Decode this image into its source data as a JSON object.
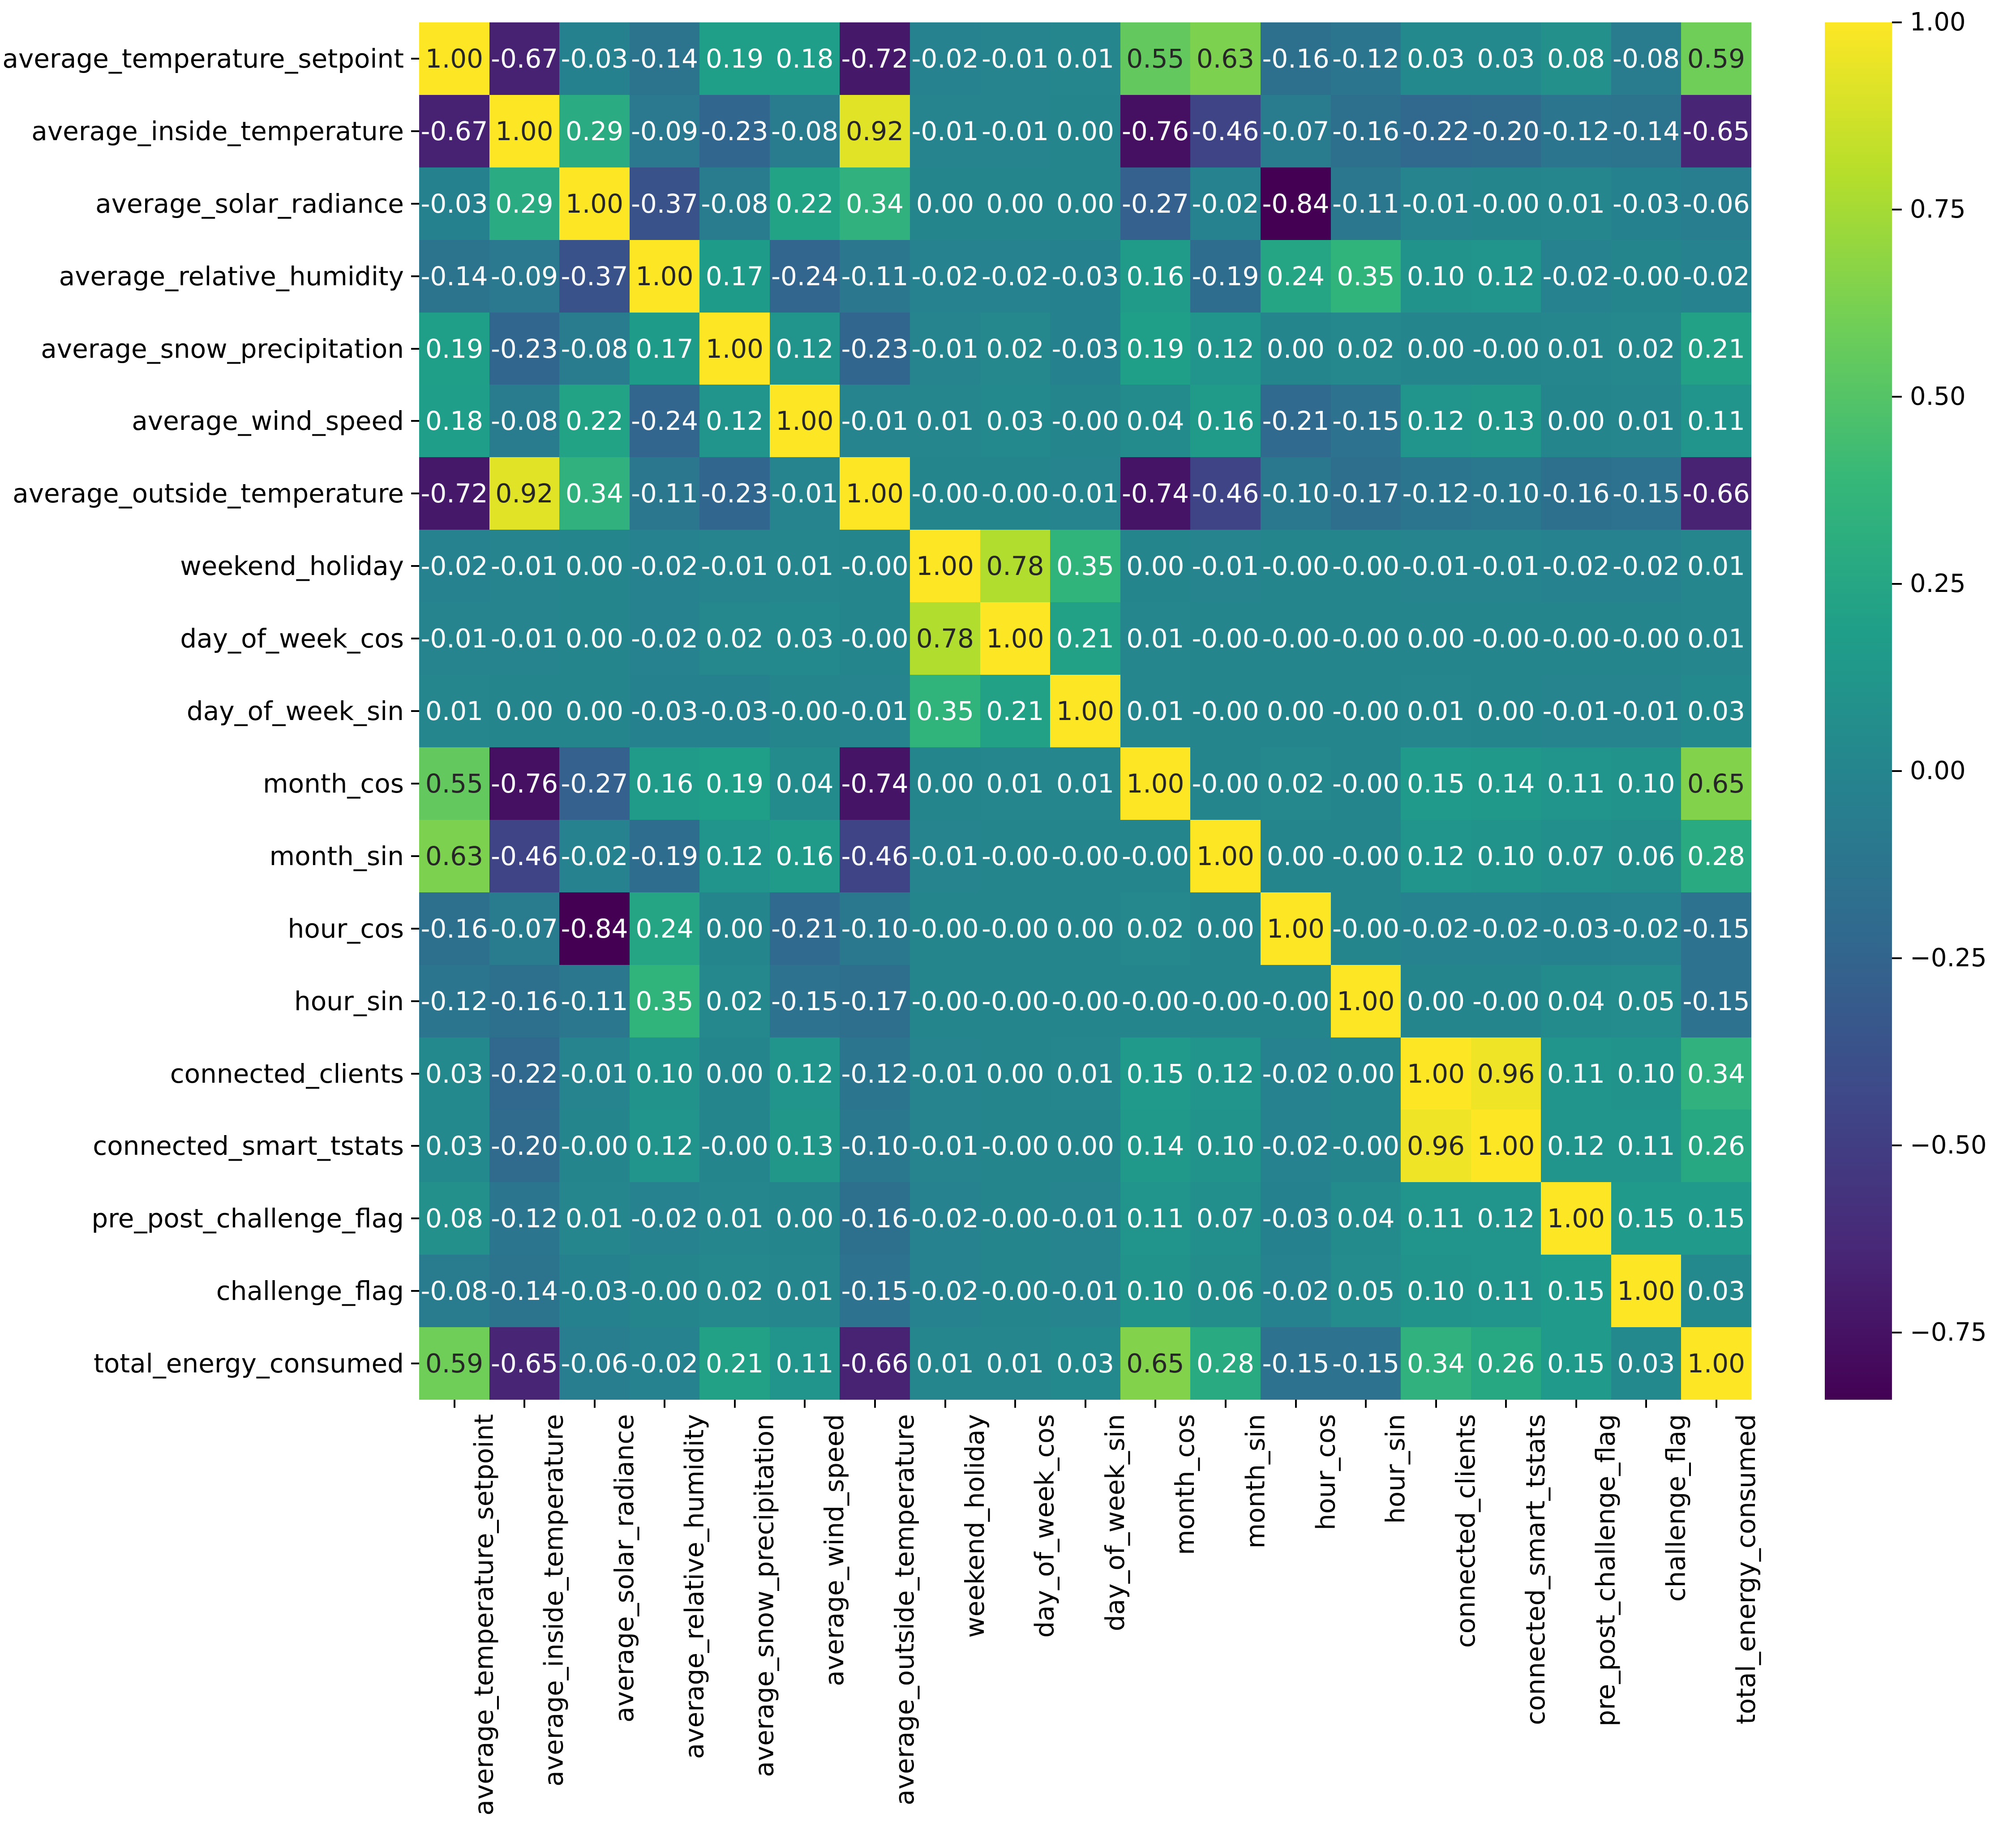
{
  "chart_data": {
    "type": "heatmap",
    "title": "",
    "colormap": "viridis",
    "vmin": -0.84,
    "vmax": 1.0,
    "grid": false,
    "legend_position": "colorbar-right",
    "labels": [
      "average_temperature_setpoint",
      "average_inside_temperature",
      "average_solar_radiance",
      "average_relative_humidity",
      "average_snow_precipitation",
      "average_wind_speed",
      "average_outside_temperature",
      "weekend_holiday",
      "day_of_week_cos",
      "day_of_week_sin",
      "month_cos",
      "month_sin",
      "hour_cos",
      "hour_sin",
      "connected_clients",
      "connected_smart_tstats",
      "pre_post_challenge_flag",
      "challenge_flag",
      "total_energy_consumed"
    ],
    "values": [
      [
        "1.00",
        "-0.67",
        "-0.03",
        "-0.14",
        "0.19",
        "0.18",
        "-0.72",
        "-0.02",
        "-0.01",
        "0.01",
        "0.55",
        "0.63",
        "-0.16",
        "-0.12",
        "0.03",
        "0.03",
        "0.08",
        "-0.08",
        "0.59"
      ],
      [
        "-0.67",
        "1.00",
        "0.29",
        "-0.09",
        "-0.23",
        "-0.08",
        "0.92",
        "-0.01",
        "-0.01",
        "0.00",
        "-0.76",
        "-0.46",
        "-0.07",
        "-0.16",
        "-0.22",
        "-0.20",
        "-0.12",
        "-0.14",
        "-0.65"
      ],
      [
        "-0.03",
        "0.29",
        "1.00",
        "-0.37",
        "-0.08",
        "0.22",
        "0.34",
        "0.00",
        "0.00",
        "0.00",
        "-0.27",
        "-0.02",
        "-0.84",
        "-0.11",
        "-0.01",
        "-0.00",
        "0.01",
        "-0.03",
        "-0.06"
      ],
      [
        "-0.14",
        "-0.09",
        "-0.37",
        "1.00",
        "0.17",
        "-0.24",
        "-0.11",
        "-0.02",
        "-0.02",
        "-0.03",
        "0.16",
        "-0.19",
        "0.24",
        "0.35",
        "0.10",
        "0.12",
        "-0.02",
        "-0.00",
        "-0.02"
      ],
      [
        "0.19",
        "-0.23",
        "-0.08",
        "0.17",
        "1.00",
        "0.12",
        "-0.23",
        "-0.01",
        "0.02",
        "-0.03",
        "0.19",
        "0.12",
        "0.00",
        "0.02",
        "0.00",
        "-0.00",
        "0.01",
        "0.02",
        "0.21"
      ],
      [
        "0.18",
        "-0.08",
        "0.22",
        "-0.24",
        "0.12",
        "1.00",
        "-0.01",
        "0.01",
        "0.03",
        "-0.00",
        "0.04",
        "0.16",
        "-0.21",
        "-0.15",
        "0.12",
        "0.13",
        "0.00",
        "0.01",
        "0.11"
      ],
      [
        "-0.72",
        "0.92",
        "0.34",
        "-0.11",
        "-0.23",
        "-0.01",
        "1.00",
        "-0.00",
        "-0.00",
        "-0.01",
        "-0.74",
        "-0.46",
        "-0.10",
        "-0.17",
        "-0.12",
        "-0.10",
        "-0.16",
        "-0.15",
        "-0.66"
      ],
      [
        "-0.02",
        "-0.01",
        "0.00",
        "-0.02",
        "-0.01",
        "0.01",
        "-0.00",
        "1.00",
        "0.78",
        "0.35",
        "0.00",
        "-0.01",
        "-0.00",
        "-0.00",
        "-0.01",
        "-0.01",
        "-0.02",
        "-0.02",
        "0.01"
      ],
      [
        "-0.01",
        "-0.01",
        "0.00",
        "-0.02",
        "0.02",
        "0.03",
        "-0.00",
        "0.78",
        "1.00",
        "0.21",
        "0.01",
        "-0.00",
        "-0.00",
        "-0.00",
        "0.00",
        "-0.00",
        "-0.00",
        "-0.00",
        "0.01"
      ],
      [
        "0.01",
        "0.00",
        "0.00",
        "-0.03",
        "-0.03",
        "-0.00",
        "-0.01",
        "0.35",
        "0.21",
        "1.00",
        "0.01",
        "-0.00",
        "0.00",
        "-0.00",
        "0.01",
        "0.00",
        "-0.01",
        "-0.01",
        "0.03"
      ],
      [
        "0.55",
        "-0.76",
        "-0.27",
        "0.16",
        "0.19",
        "0.04",
        "-0.74",
        "0.00",
        "0.01",
        "0.01",
        "1.00",
        "-0.00",
        "0.02",
        "-0.00",
        "0.15",
        "0.14",
        "0.11",
        "0.10",
        "0.65"
      ],
      [
        "0.63",
        "-0.46",
        "-0.02",
        "-0.19",
        "0.12",
        "0.16",
        "-0.46",
        "-0.01",
        "-0.00",
        "-0.00",
        "-0.00",
        "1.00",
        "0.00",
        "-0.00",
        "0.12",
        "0.10",
        "0.07",
        "0.06",
        "0.28"
      ],
      [
        "-0.16",
        "-0.07",
        "-0.84",
        "0.24",
        "0.00",
        "-0.21",
        "-0.10",
        "-0.00",
        "-0.00",
        "0.00",
        "0.02",
        "0.00",
        "1.00",
        "-0.00",
        "-0.02",
        "-0.02",
        "-0.03",
        "-0.02",
        "-0.15"
      ],
      [
        "-0.12",
        "-0.16",
        "-0.11",
        "0.35",
        "0.02",
        "-0.15",
        "-0.17",
        "-0.00",
        "-0.00",
        "-0.00",
        "-0.00",
        "-0.00",
        "-0.00",
        "1.00",
        "0.00",
        "-0.00",
        "0.04",
        "0.05",
        "-0.15"
      ],
      [
        "0.03",
        "-0.22",
        "-0.01",
        "0.10",
        "0.00",
        "0.12",
        "-0.12",
        "-0.01",
        "0.00",
        "0.01",
        "0.15",
        "0.12",
        "-0.02",
        "0.00",
        "1.00",
        "0.96",
        "0.11",
        "0.10",
        "0.34"
      ],
      [
        "0.03",
        "-0.20",
        "-0.00",
        "0.12",
        "-0.00",
        "0.13",
        "-0.10",
        "-0.01",
        "-0.00",
        "0.00",
        "0.14",
        "0.10",
        "-0.02",
        "-0.00",
        "0.96",
        "1.00",
        "0.12",
        "0.11",
        "0.26"
      ],
      [
        "0.08",
        "-0.12",
        "0.01",
        "-0.02",
        "0.01",
        "0.00",
        "-0.16",
        "-0.02",
        "-0.00",
        "-0.01",
        "0.11",
        "0.07",
        "-0.03",
        "0.04",
        "0.11",
        "0.12",
        "1.00",
        "0.15",
        "0.15"
      ],
      [
        "-0.08",
        "-0.14",
        "-0.03",
        "-0.00",
        "0.02",
        "0.01",
        "-0.15",
        "-0.02",
        "-0.00",
        "-0.01",
        "0.10",
        "0.06",
        "-0.02",
        "0.05",
        "0.10",
        "0.11",
        "0.15",
        "1.00",
        "0.03"
      ],
      [
        "0.59",
        "-0.65",
        "-0.06",
        "-0.02",
        "0.21",
        "0.11",
        "-0.66",
        "0.01",
        "0.01",
        "0.03",
        "0.65",
        "0.28",
        "-0.15",
        "-0.15",
        "0.34",
        "0.26",
        "0.15",
        "0.03",
        "1.00"
      ]
    ],
    "colorbar": {
      "tick_labels": [
        "1.00",
        "0.75",
        "0.50",
        "0.25",
        "0.00",
        "−0.25",
        "−0.50",
        "−0.75"
      ],
      "tick_values": [
        1.0,
        0.75,
        0.5,
        0.25,
        0.0,
        -0.25,
        -0.5,
        -0.75
      ]
    },
    "viridis_stops": [
      "#440154",
      "#482878",
      "#3e4989",
      "#31688e",
      "#26828e",
      "#1f9e89",
      "#35b779",
      "#6ece58",
      "#b5de2b",
      "#fde725"
    ],
    "annotation_text_colors": {
      "on_light": "#262626",
      "on_dark": "#ffffff"
    }
  }
}
